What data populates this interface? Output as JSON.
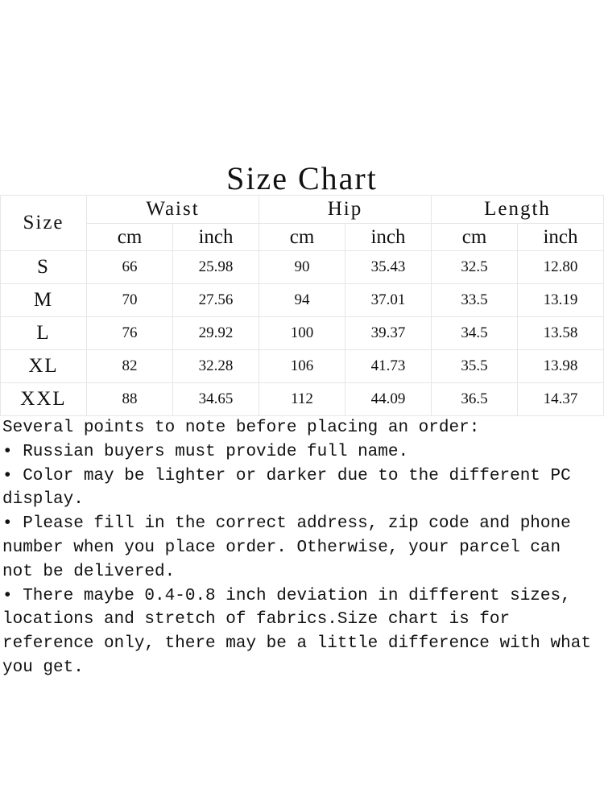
{
  "title": "Size Chart",
  "table": {
    "size_header": "Size",
    "groups": [
      "Waist",
      "Hip",
      "Length"
    ],
    "units": [
      "cm",
      "inch",
      "cm",
      "inch",
      "cm",
      "inch"
    ],
    "rows": [
      [
        "S",
        "66",
        "25.98",
        "90",
        "35.43",
        "32.5",
        "12.80"
      ],
      [
        "M",
        "70",
        "27.56",
        "94",
        "37.01",
        "33.5",
        "13.19"
      ],
      [
        "L",
        "76",
        "29.92",
        "100",
        "39.37",
        "34.5",
        "13.58"
      ],
      [
        "XL",
        "82",
        "32.28",
        "106",
        "41.73",
        "35.5",
        "13.98"
      ],
      [
        "XXL",
        "88",
        "34.65",
        "112",
        "44.09",
        "36.5",
        "14.37"
      ]
    ]
  },
  "notes": {
    "heading": "Several points to note before placing an order:",
    "items": [
      "• Russian buyers must provide full name.",
      "• Color may be lighter or darker due to the different PC display.",
      "• Please fill in the correct address, zip code and phone number when you place order. Otherwise, your parcel can not be delivered.",
      "• There maybe 0.4-0.8 inch deviation in different sizes, locations and stretch of fabrics.Size chart is for reference only, there may be a little difference with what you get."
    ]
  }
}
